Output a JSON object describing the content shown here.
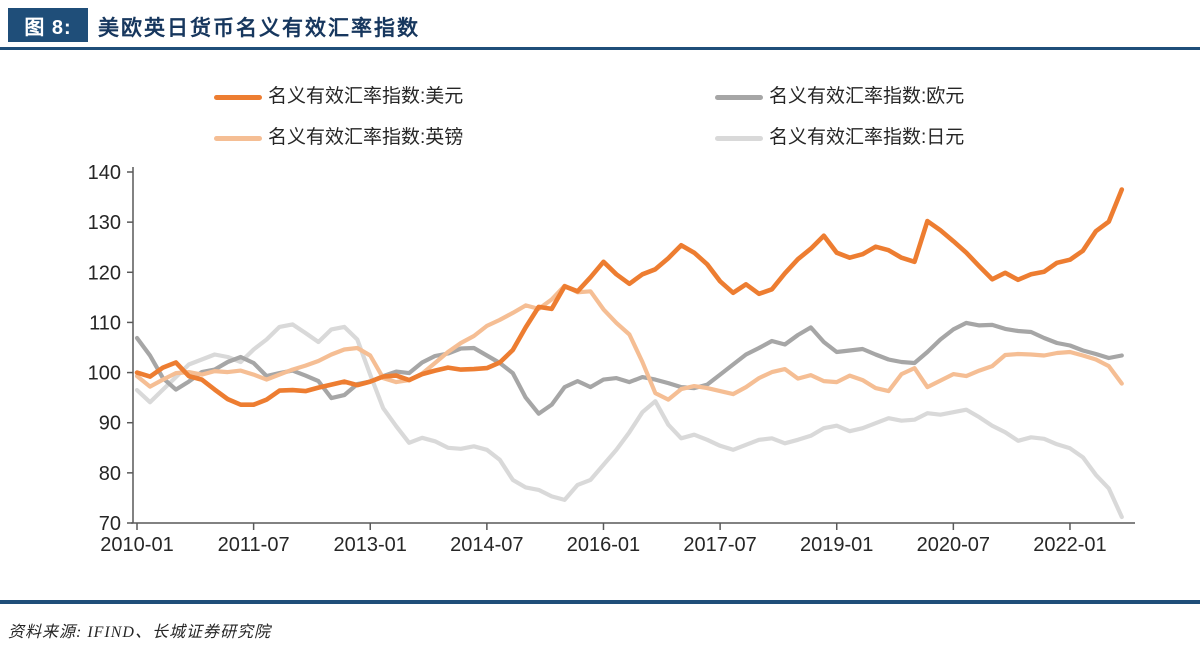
{
  "header": {
    "badge": "图 8:",
    "title": "美欧英日货币名义有效汇率指数",
    "accent_color": "#1F4E79"
  },
  "footer": {
    "source": "资料来源: IFIND、长城证券研究院"
  },
  "colors": {
    "accent_navy": "#1F4E79",
    "axis": "#595959",
    "label_text": "#262626",
    "usd": "#ED7D31",
    "eur": "#A6A6A6",
    "gbp": "#F5BE94",
    "jpy": "#D9D9D9"
  },
  "chart_data": {
    "type": "line",
    "grid": false,
    "legend_position": "top",
    "ylim": [
      70,
      140
    ],
    "y_ticks": [
      70,
      80,
      90,
      100,
      110,
      120,
      130,
      140
    ],
    "x_tick_labels": [
      "2010-01",
      "2011-07",
      "2013-01",
      "2014-07",
      "2016-01",
      "2017-07",
      "2019-01",
      "2020-07",
      "2022-01"
    ],
    "categories": [
      "2010-01",
      "2010-03",
      "2010-05",
      "2010-07",
      "2010-09",
      "2010-11",
      "2011-01",
      "2011-03",
      "2011-05",
      "2011-07",
      "2011-09",
      "2011-11",
      "2012-01",
      "2012-03",
      "2012-05",
      "2012-07",
      "2012-09",
      "2012-11",
      "2013-01",
      "2013-03",
      "2013-05",
      "2013-07",
      "2013-09",
      "2013-11",
      "2014-01",
      "2014-03",
      "2014-05",
      "2014-07",
      "2014-09",
      "2014-11",
      "2015-01",
      "2015-03",
      "2015-05",
      "2015-07",
      "2015-09",
      "2015-11",
      "2016-01",
      "2016-03",
      "2016-05",
      "2016-07",
      "2016-09",
      "2016-11",
      "2017-01",
      "2017-03",
      "2017-05",
      "2017-07",
      "2017-09",
      "2017-11",
      "2018-01",
      "2018-03",
      "2018-05",
      "2018-07",
      "2018-09",
      "2018-11",
      "2019-01",
      "2019-03",
      "2019-05",
      "2019-07",
      "2019-09",
      "2019-11",
      "2020-01",
      "2020-03",
      "2020-05",
      "2020-07",
      "2020-09",
      "2020-11",
      "2021-01",
      "2021-03",
      "2021-05",
      "2021-07",
      "2021-09",
      "2021-11",
      "2022-01",
      "2022-03",
      "2022-05",
      "2022-07",
      "2022-09"
    ],
    "series": [
      {
        "id": "usd",
        "name": "名义有效汇率指数:美元",
        "color": "#ED7D31",
        "values": [
          100.0,
          99.2,
          101.0,
          102.0,
          99.3,
          98.6,
          96.6,
          94.7,
          93.6,
          93.6,
          94.6,
          96.4,
          96.5,
          96.3,
          97.0,
          97.6,
          98.2,
          97.5,
          98.2,
          99.2,
          99.4,
          98.5,
          99.7,
          100.4,
          101.0,
          100.6,
          100.7,
          100.9,
          102.0,
          104.5,
          109.0,
          113.1,
          112.7,
          117.2,
          116.2,
          119.0,
          122.1,
          119.6,
          117.7,
          119.6,
          120.6,
          122.8,
          125.4,
          123.9,
          121.6,
          118.2,
          115.9,
          117.6,
          115.7,
          116.6,
          119.8,
          122.6,
          124.7,
          127.3,
          123.9,
          122.9,
          123.6,
          125.1,
          124.4,
          122.9,
          122.1,
          130.2,
          128.4,
          126.2,
          123.9,
          121.2,
          118.6,
          119.9,
          118.5,
          119.6,
          120.1,
          121.9,
          122.5,
          124.3,
          128.2,
          130.1,
          136.5
        ]
      },
      {
        "id": "eur",
        "name": "名义有效汇率指数:欧元",
        "color": "#A6A6A6",
        "values": [
          106.9,
          103.4,
          98.9,
          96.6,
          98.2,
          100.1,
          100.6,
          102.1,
          103.1,
          101.9,
          99.3,
          99.9,
          100.4,
          99.4,
          98.3,
          94.9,
          95.5,
          97.7,
          98.2,
          99.3,
          100.2,
          99.9,
          102.0,
          103.3,
          103.8,
          104.8,
          104.9,
          103.4,
          101.9,
          99.9,
          95.0,
          91.8,
          93.6,
          97.1,
          98.3,
          97.1,
          98.6,
          98.9,
          98.1,
          99.1,
          98.6,
          97.9,
          97.1,
          96.9,
          97.6,
          99.6,
          101.6,
          103.6,
          104.9,
          106.3,
          105.6,
          107.5,
          109.0,
          106.1,
          104.1,
          104.4,
          104.7,
          103.6,
          102.6,
          102.1,
          101.9,
          104.1,
          106.6,
          108.6,
          109.9,
          109.4,
          109.5,
          108.7,
          108.3,
          108.1,
          106.9,
          105.9,
          105.4,
          104.4,
          103.7,
          102.9,
          103.4
        ]
      },
      {
        "id": "gbp",
        "name": "名义有效汇率指数:英镑",
        "color": "#F5BE94",
        "values": [
          99.3,
          97.2,
          98.6,
          99.9,
          100.1,
          99.6,
          100.3,
          100.1,
          100.4,
          99.6,
          98.6,
          99.6,
          100.6,
          101.4,
          102.3,
          103.6,
          104.6,
          104.9,
          103.4,
          98.9,
          98.1,
          98.5,
          99.8,
          101.9,
          104.1,
          105.9,
          107.3,
          109.3,
          110.5,
          111.9,
          113.4,
          112.7,
          114.6,
          117.3,
          116.0,
          116.2,
          112.6,
          109.9,
          107.6,
          102.1,
          95.9,
          94.6,
          96.7,
          97.3,
          96.9,
          96.3,
          95.7,
          97.1,
          98.9,
          100.1,
          100.7,
          98.8,
          99.5,
          98.3,
          98.1,
          99.4,
          98.5,
          96.9,
          96.3,
          99.7,
          100.9,
          97.1,
          98.4,
          99.7,
          99.3,
          100.4,
          101.3,
          103.5,
          103.7,
          103.6,
          103.4,
          103.9,
          104.1,
          103.4,
          102.6,
          101.3,
          97.8
        ]
      },
      {
        "id": "jpy",
        "name": "名义有效汇率指数:日元",
        "color": "#D9D9D9",
        "values": [
          96.5,
          94.1,
          96.6,
          99.1,
          101.6,
          102.6,
          103.6,
          103.1,
          102.1,
          104.6,
          106.6,
          109.1,
          109.6,
          107.9,
          106.1,
          108.6,
          109.1,
          106.6,
          99.6,
          92.9,
          89.3,
          86.0,
          87.0,
          86.3,
          85.0,
          84.8,
          85.3,
          84.6,
          82.6,
          78.6,
          77.1,
          76.6,
          75.3,
          74.6,
          77.6,
          78.6,
          81.6,
          84.6,
          88.1,
          92.1,
          94.3,
          89.6,
          86.9,
          87.6,
          86.6,
          85.4,
          84.6,
          85.6,
          86.6,
          86.9,
          85.9,
          86.6,
          87.4,
          88.9,
          89.4,
          88.3,
          88.9,
          89.9,
          90.9,
          90.4,
          90.6,
          91.9,
          91.6,
          92.1,
          92.6,
          91.1,
          89.4,
          88.1,
          86.4,
          87.1,
          86.8,
          85.7,
          84.9,
          83.1,
          79.6,
          76.9,
          71.2
        ]
      }
    ]
  }
}
